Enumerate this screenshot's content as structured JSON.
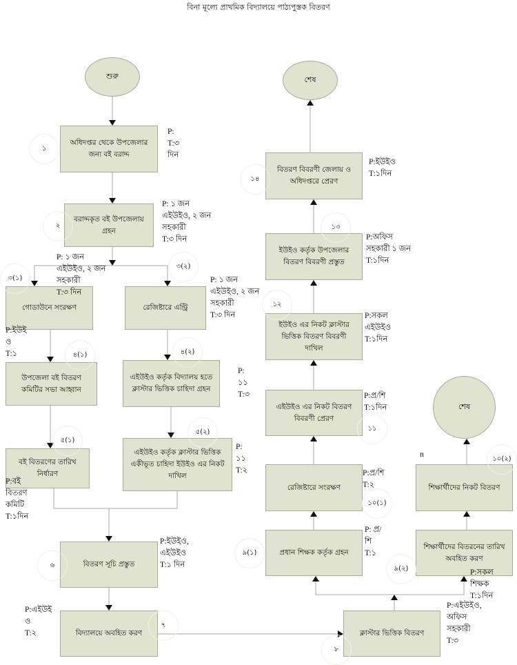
{
  "title": "বিনা মূল্যে প্রাথমিক বিদ্যালয়ে পাঠ্যপুস্তক বিতরণ",
  "terminals": {
    "start": "শুরু",
    "end_top": "শেষ",
    "end_right": "শেষ"
  },
  "boxes": {
    "b1": "অধিদপ্তর থেকে উপজেলার জন্য বই বরাদ্দ",
    "b2": "বরাদ্দকৃত বই উপজেলায় গ্রহন",
    "b3_1": "গোডাউনে সংরক্ষণ",
    "b3_2": "রেজিষ্টারে এন্ট্রি",
    "b4_1": "উপজেলা বই বিতরণ কমিটির সভা আহ্বান",
    "b4_2": "এইউইও কর্তৃক বিদ্যালয় হতে ক্লাস্টার ভিত্তিক চাহিদা গ্রহন",
    "b5_1": "বই বিতরণের তারিখ নির্ধারণ",
    "b5_2": "এইউইও কর্তৃক ক্লাস্টার ভিত্তিক একীভূত চাহিদা ইউইও এর নিকট দাখিল",
    "b6": "বিতরণ সূচি প্রস্তুত",
    "b7": "বিদ্যালয়ে অবহিত করণ",
    "b8": "ক্লাস্টার ভিত্তিক বিতরণ",
    "b9_1": "প্রধান শিক্ষক কর্তৃক গ্রহন",
    "b9_2": "শিক্ষার্থীদের বিতরনের তারিখ অবহিত করণ",
    "b10_1": "রেজিষ্টারে সংরক্ষণ",
    "b10_2": "শিক্ষার্থীদের নিকট বিতরণ",
    "b11": "এইউইও এর নিকট বিতরণ বিবরণী প্রেরণ",
    "b12": "ইউইও এর নিকট ক্লাস্টার ভিত্তিক বিতরণ বিবরণী দাখিল",
    "b13": "ইউইও কর্তৃক উপজেলার বিতরণ বিবরণী প্রস্তুত",
    "b14": "বিতরণ বিবরণী জেলায় ও অধিদপ্তরে প্রেরণ"
  },
  "notes": {
    "n1": "P:\nT:৩\nদিন",
    "n2": "P: ১ জন\nএইউইও, ২ জন\nসহকারী\nT:৩ দিন",
    "n3_1": "P: ১ জন\nএইউইও, ২ জন\nসহকারী\n        T:৩ দিন",
    "n3_2": "P: ১ জন\nএইউইও, ২ জন\nসহকারী\nT:৩ দিন",
    "n4_1": "P:ইউই\nও\nT:১",
    "n4_2": "P:\n১১\nT:৩",
    "n5_1": "P:বই\nবিতরণ\nকমিটি\nT:১দিন",
    "n5_2": "P:\n১১\nT:২",
    "n6": "P:ইউইও,\nএইউইও\nT:১ দিন",
    "n7": "P:এইউই\nও\nT:২",
    "n8": "P:এইউইও,\nঅফিস\nসহকারী\nT:৩",
    "n9_1": "P: প্র/\nশি\nT:১",
    "n9_2": "P:সকল\nশিক্ষক\nT:১দিন",
    "n10_1": "P:প্র/শি\nT:২",
    "n10_2": "n",
    "n11": "P:প্র/শি\nT:১দিন",
    "n12": "P:সকল\nএইউইও\nT:১দিন",
    "n13": "P:অফিস\nসহকারী ১ জন\nT:১দিন",
    "n14": "P:ইউইও\nT:১দিন"
  },
  "step_numbers": {
    "s1": "১",
    "s2": "২",
    "s3_1": "৩(১)",
    "s3_2": "৩(২)",
    "s4_1": "৪(১)",
    "s4_2": "৪(২)",
    "s5_1": "৫(১)",
    "s5_2": "৫(২)",
    "s6": "৬",
    "s7": "৭",
    "s8": "৮",
    "s9_1": "৯(১)",
    "s9_2": "৯(২)",
    "s10_1": "১০(১)",
    "s10_2": "১০(২)",
    "s11": "১১",
    "s12": "১২",
    "s13": "১৩",
    "s14": "১৪"
  },
  "colors": {
    "box_fill": "#dfe3cf",
    "box_border": "#a7ab99",
    "connector": "#aaaaaa"
  }
}
